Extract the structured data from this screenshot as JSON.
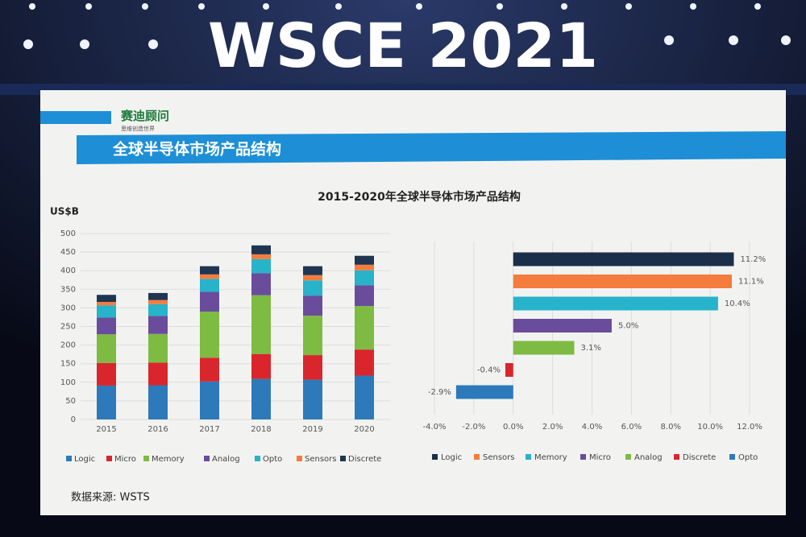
{
  "stage_title": "WSCE 2021",
  "slide": {
    "logo": "赛迪顾问",
    "slogan": "思维创造世界",
    "heading": "全球半导体市场产品结构",
    "chart_title": "2015-2020年全球半导体市场产品结构",
    "source": "数据来源: WSTS"
  },
  "chart_data": [
    {
      "type": "stacked_bar",
      "y_label": "US$B",
      "categories": [
        "2015",
        "2016",
        "2017",
        "2018",
        "2019",
        "2020"
      ],
      "ylim": [
        0,
        500
      ],
      "yticks": [
        0,
        50,
        100,
        150,
        200,
        250,
        300,
        350,
        400,
        450,
        500
      ],
      "series": [
        {
          "name": "Logic",
          "color": "#2e79b9",
          "values": [
            91,
            92,
            102,
            109,
            107,
            118
          ]
        },
        {
          "name": "Micro",
          "color": "#d9262c",
          "values": [
            61,
            61,
            64,
            67,
            66,
            70
          ]
        },
        {
          "name": "Memory",
          "color": "#7dbb42",
          "values": [
            77,
            77,
            124,
            158,
            106,
            117
          ]
        },
        {
          "name": "Analog",
          "color": "#6a4c9c",
          "values": [
            45,
            48,
            53,
            59,
            54,
            56
          ]
        },
        {
          "name": "Opto",
          "color": "#27b3c9",
          "values": [
            33,
            32,
            35,
            38,
            41,
            40
          ]
        },
        {
          "name": "Sensors",
          "color": "#f47c3c",
          "values": [
            9,
            11,
            12,
            13,
            14,
            15
          ]
        },
        {
          "name": "Discrete",
          "color": "#1f3553",
          "values": [
            19,
            19,
            22,
            24,
            24,
            24
          ]
        }
      ]
    },
    {
      "type": "hbar",
      "categories": [
        "Logic",
        "Sensors",
        "Memory",
        "Micro",
        "Analog",
        "Discrete",
        "Opto"
      ],
      "values": [
        11.2,
        11.1,
        10.4,
        5.0,
        3.1,
        -0.4,
        -2.9
      ],
      "value_labels": [
        "11.2%",
        "11.1%",
        "10.4%",
        "5.0%",
        "3.1%",
        "-0.4%",
        "-2.9%"
      ],
      "colors": [
        "#1b2e4a",
        "#f47c3c",
        "#27b3c9",
        "#6a4c9c",
        "#7dbb42",
        "#d9262c",
        "#2e79b9"
      ],
      "xlim": [
        -4,
        12
      ],
      "xticks": [
        {
          "value": -4,
          "label": "-4.0%"
        },
        {
          "value": -2,
          "label": "-2.0%"
        },
        {
          "value": 0,
          "label": "0.0%"
        },
        {
          "value": 2,
          "label": "2.0%"
        },
        {
          "value": 4,
          "label": "4.0%"
        },
        {
          "value": 6,
          "label": "6.0%"
        },
        {
          "value": 8,
          "label": "8.0%"
        },
        {
          "value": 10,
          "label": "10.0%"
        },
        {
          "value": 12,
          "label": "12.0%"
        }
      ],
      "grid": true
    }
  ]
}
